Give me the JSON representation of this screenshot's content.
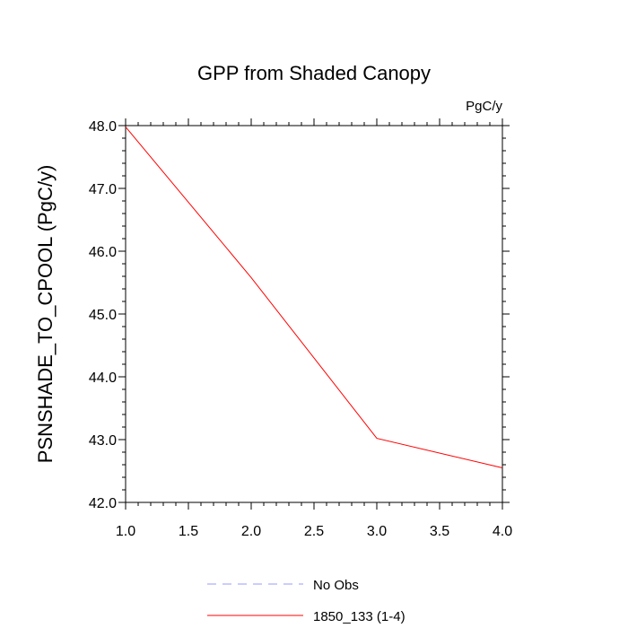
{
  "chart_data": {
    "type": "line",
    "title": "GPP from Shaded Canopy",
    "units_label": "PgC/y",
    "xlabel": "",
    "ylabel": "PSNSHADE_TO_CPOOL  (PgC/y)",
    "xlim": [
      1.0,
      4.0
    ],
    "ylim": [
      42.0,
      48.0
    ],
    "x_ticks": [
      1.0,
      1.5,
      2.0,
      2.5,
      3.0,
      3.5,
      4.0
    ],
    "x_tick_labels": [
      "1.0",
      "1.5",
      "2.0",
      "2.5",
      "3.0",
      "3.5",
      "4.0"
    ],
    "y_ticks": [
      42.0,
      43.0,
      44.0,
      45.0,
      46.0,
      47.0,
      48.0
    ],
    "y_tick_labels": [
      "42.0",
      "43.0",
      "44.0",
      "45.0",
      "46.0",
      "47.0",
      "48.0"
    ],
    "grid": false,
    "series": [
      {
        "name": "1850_133 (1-4)",
        "color": "#ff0000",
        "dash": "solid",
        "x": [
          1.0,
          2.0,
          3.0,
          4.0
        ],
        "y": [
          47.98,
          45.58,
          43.02,
          42.55
        ]
      }
    ],
    "legend": [
      {
        "label": "No Obs",
        "color": "#9999ff",
        "dash": "dashed"
      },
      {
        "label": "1850_133 (1-4)",
        "color": "#ff0000",
        "dash": "solid"
      }
    ],
    "legend_position": "bottom-center"
  }
}
